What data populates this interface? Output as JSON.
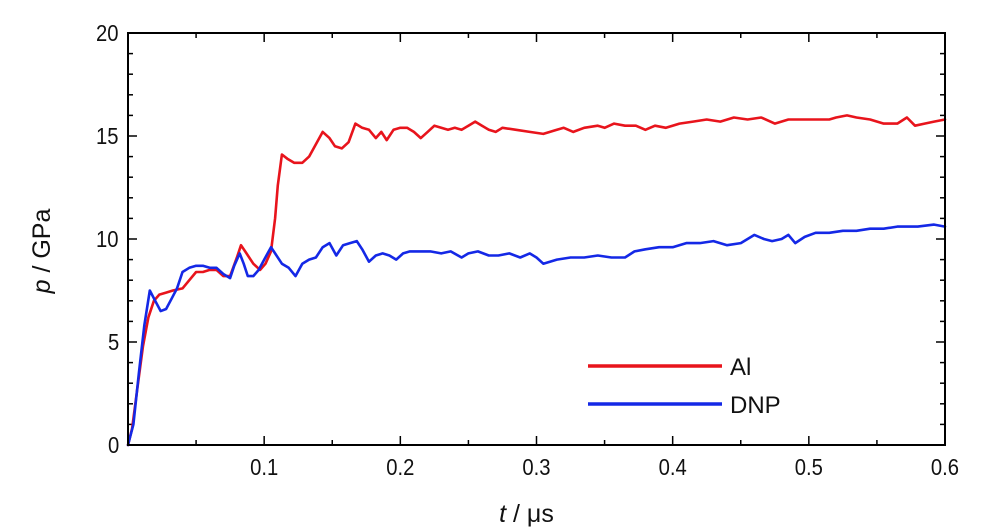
{
  "chart_data": {
    "type": "line",
    "title": "",
    "xlabel": {
      "symbol": "t",
      "unit": " / μs"
    },
    "ylabel": {
      "symbol": "p",
      "unit": " / GPa"
    },
    "xlim": [
      0,
      0.6
    ],
    "ylim": [
      0,
      20
    ],
    "x_ticks": [
      0.1,
      0.2,
      0.3,
      0.4,
      0.5,
      0.6
    ],
    "x_tick_labels": [
      "0.1",
      "0.2",
      "0.3",
      "0.4",
      "0.5",
      "0.6"
    ],
    "y_ticks": [
      0,
      5,
      10,
      15,
      20
    ],
    "y_tick_labels": [
      "0",
      "5",
      "10",
      "15",
      "20"
    ],
    "grid": false,
    "legend_position": "bottom-right",
    "series": [
      {
        "name": "Al",
        "color": "#e8141c",
        "points": [
          [
            0.0,
            0.0
          ],
          [
            0.003,
            0.8
          ],
          [
            0.007,
            2.8
          ],
          [
            0.011,
            4.8
          ],
          [
            0.015,
            6.2
          ],
          [
            0.019,
            7.0
          ],
          [
            0.023,
            7.3
          ],
          [
            0.028,
            7.4
          ],
          [
            0.033,
            7.5
          ],
          [
            0.04,
            7.6
          ],
          [
            0.045,
            8.0
          ],
          [
            0.05,
            8.4
          ],
          [
            0.055,
            8.4
          ],
          [
            0.06,
            8.5
          ],
          [
            0.065,
            8.5
          ],
          [
            0.07,
            8.2
          ],
          [
            0.075,
            8.2
          ],
          [
            0.08,
            9.1
          ],
          [
            0.083,
            9.7
          ],
          [
            0.087,
            9.3
          ],
          [
            0.092,
            8.8
          ],
          [
            0.097,
            8.5
          ],
          [
            0.101,
            8.8
          ],
          [
            0.105,
            9.4
          ],
          [
            0.108,
            11.0
          ],
          [
            0.11,
            12.6
          ],
          [
            0.113,
            14.1
          ],
          [
            0.117,
            13.9
          ],
          [
            0.122,
            13.7
          ],
          [
            0.128,
            13.7
          ],
          [
            0.133,
            14.0
          ],
          [
            0.138,
            14.6
          ],
          [
            0.143,
            15.2
          ],
          [
            0.148,
            14.9
          ],
          [
            0.152,
            14.5
          ],
          [
            0.157,
            14.4
          ],
          [
            0.162,
            14.7
          ],
          [
            0.167,
            15.6
          ],
          [
            0.172,
            15.4
          ],
          [
            0.177,
            15.3
          ],
          [
            0.182,
            14.9
          ],
          [
            0.186,
            15.2
          ],
          [
            0.19,
            14.8
          ],
          [
            0.195,
            15.3
          ],
          [
            0.2,
            15.4
          ],
          [
            0.205,
            15.4
          ],
          [
            0.21,
            15.2
          ],
          [
            0.215,
            14.9
          ],
          [
            0.22,
            15.2
          ],
          [
            0.225,
            15.5
          ],
          [
            0.23,
            15.4
          ],
          [
            0.235,
            15.3
          ],
          [
            0.24,
            15.4
          ],
          [
            0.245,
            15.3
          ],
          [
            0.25,
            15.5
          ],
          [
            0.255,
            15.7
          ],
          [
            0.26,
            15.5
          ],
          [
            0.265,
            15.3
          ],
          [
            0.27,
            15.2
          ],
          [
            0.275,
            15.4
          ],
          [
            0.285,
            15.3
          ],
          [
            0.295,
            15.2
          ],
          [
            0.305,
            15.1
          ],
          [
            0.315,
            15.3
          ],
          [
            0.32,
            15.4
          ],
          [
            0.327,
            15.2
          ],
          [
            0.335,
            15.4
          ],
          [
            0.345,
            15.5
          ],
          [
            0.35,
            15.4
          ],
          [
            0.357,
            15.6
          ],
          [
            0.365,
            15.5
          ],
          [
            0.373,
            15.5
          ],
          [
            0.38,
            15.3
          ],
          [
            0.387,
            15.5
          ],
          [
            0.395,
            15.4
          ],
          [
            0.405,
            15.6
          ],
          [
            0.415,
            15.7
          ],
          [
            0.425,
            15.8
          ],
          [
            0.435,
            15.7
          ],
          [
            0.445,
            15.9
          ],
          [
            0.455,
            15.8
          ],
          [
            0.465,
            15.9
          ],
          [
            0.475,
            15.6
          ],
          [
            0.485,
            15.8
          ],
          [
            0.495,
            15.8
          ],
          [
            0.505,
            15.8
          ],
          [
            0.515,
            15.8
          ],
          [
            0.52,
            15.9
          ],
          [
            0.528,
            16.0
          ],
          [
            0.535,
            15.9
          ],
          [
            0.545,
            15.8
          ],
          [
            0.555,
            15.6
          ],
          [
            0.565,
            15.6
          ],
          [
            0.572,
            15.9
          ],
          [
            0.578,
            15.5
          ],
          [
            0.585,
            15.6
          ],
          [
            0.592,
            15.7
          ],
          [
            0.6,
            15.8
          ]
        ]
      },
      {
        "name": "DNP",
        "color": "#1428e6",
        "points": [
          [
            0.0,
            0.0
          ],
          [
            0.004,
            1.0
          ],
          [
            0.008,
            3.5
          ],
          [
            0.012,
            5.8
          ],
          [
            0.016,
            7.5
          ],
          [
            0.02,
            7.0
          ],
          [
            0.024,
            6.5
          ],
          [
            0.028,
            6.6
          ],
          [
            0.032,
            7.1
          ],
          [
            0.036,
            7.6
          ],
          [
            0.04,
            8.4
          ],
          [
            0.045,
            8.6
          ],
          [
            0.05,
            8.7
          ],
          [
            0.055,
            8.7
          ],
          [
            0.06,
            8.6
          ],
          [
            0.065,
            8.6
          ],
          [
            0.07,
            8.3
          ],
          [
            0.075,
            8.1
          ],
          [
            0.078,
            8.7
          ],
          [
            0.082,
            9.3
          ],
          [
            0.085,
            8.8
          ],
          [
            0.088,
            8.2
          ],
          [
            0.092,
            8.2
          ],
          [
            0.096,
            8.5
          ],
          [
            0.1,
            9.0
          ],
          [
            0.105,
            9.6
          ],
          [
            0.108,
            9.3
          ],
          [
            0.113,
            8.8
          ],
          [
            0.118,
            8.6
          ],
          [
            0.123,
            8.2
          ],
          [
            0.128,
            8.8
          ],
          [
            0.133,
            9.0
          ],
          [
            0.138,
            9.1
          ],
          [
            0.143,
            9.6
          ],
          [
            0.148,
            9.8
          ],
          [
            0.153,
            9.2
          ],
          [
            0.158,
            9.7
          ],
          [
            0.163,
            9.8
          ],
          [
            0.168,
            9.9
          ],
          [
            0.172,
            9.5
          ],
          [
            0.177,
            8.9
          ],
          [
            0.182,
            9.2
          ],
          [
            0.187,
            9.3
          ],
          [
            0.192,
            9.2
          ],
          [
            0.197,
            9.0
          ],
          [
            0.202,
            9.3
          ],
          [
            0.207,
            9.4
          ],
          [
            0.215,
            9.4
          ],
          [
            0.222,
            9.4
          ],
          [
            0.23,
            9.3
          ],
          [
            0.237,
            9.4
          ],
          [
            0.245,
            9.1
          ],
          [
            0.25,
            9.3
          ],
          [
            0.257,
            9.4
          ],
          [
            0.265,
            9.2
          ],
          [
            0.272,
            9.2
          ],
          [
            0.28,
            9.3
          ],
          [
            0.288,
            9.1
          ],
          [
            0.295,
            9.3
          ],
          [
            0.3,
            9.1
          ],
          [
            0.305,
            8.8
          ],
          [
            0.315,
            9.0
          ],
          [
            0.325,
            9.1
          ],
          [
            0.335,
            9.1
          ],
          [
            0.345,
            9.2
          ],
          [
            0.355,
            9.1
          ],
          [
            0.365,
            9.1
          ],
          [
            0.372,
            9.4
          ],
          [
            0.38,
            9.5
          ],
          [
            0.39,
            9.6
          ],
          [
            0.4,
            9.6
          ],
          [
            0.41,
            9.8
          ],
          [
            0.42,
            9.8
          ],
          [
            0.43,
            9.9
          ],
          [
            0.44,
            9.7
          ],
          [
            0.45,
            9.8
          ],
          [
            0.46,
            10.2
          ],
          [
            0.467,
            10.0
          ],
          [
            0.473,
            9.9
          ],
          [
            0.48,
            10.0
          ],
          [
            0.485,
            10.2
          ],
          [
            0.49,
            9.8
          ],
          [
            0.497,
            10.1
          ],
          [
            0.505,
            10.3
          ],
          [
            0.515,
            10.3
          ],
          [
            0.525,
            10.4
          ],
          [
            0.535,
            10.4
          ],
          [
            0.545,
            10.5
          ],
          [
            0.555,
            10.5
          ],
          [
            0.565,
            10.6
          ],
          [
            0.58,
            10.6
          ],
          [
            0.592,
            10.7
          ],
          [
            0.6,
            10.6
          ]
        ]
      }
    ]
  }
}
